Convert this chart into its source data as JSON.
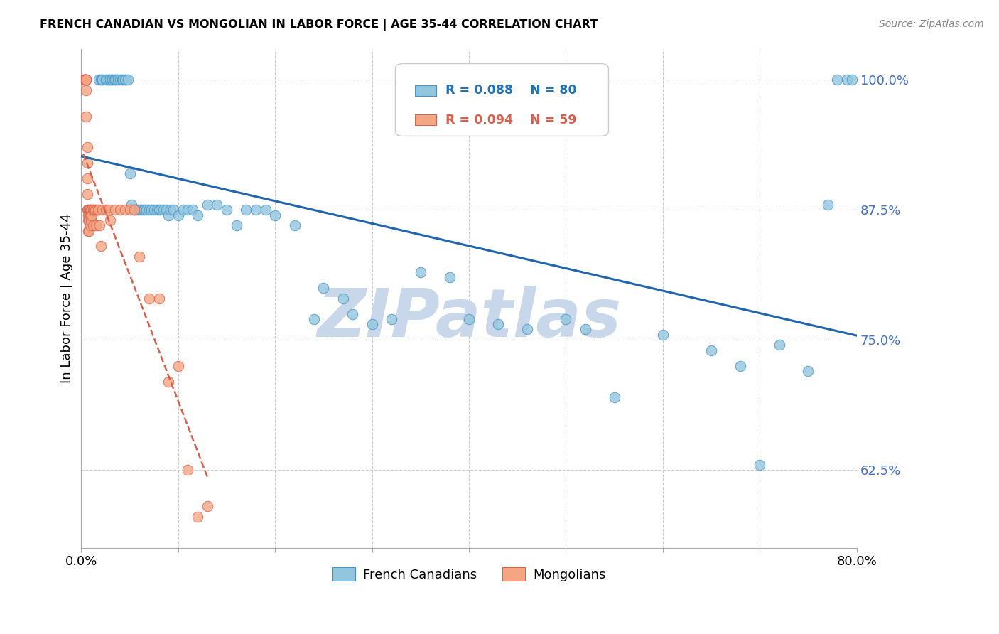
{
  "title": "FRENCH CANADIAN VS MONGOLIAN IN LABOR FORCE | AGE 35-44 CORRELATION CHART",
  "source": "Source: ZipAtlas.com",
  "ylabel": "In Labor Force | Age 35-44",
  "legend_labels": [
    "French Canadians",
    "Mongolians"
  ],
  "r_blue": 0.088,
  "n_blue": 80,
  "r_pink": 0.094,
  "n_pink": 59,
  "xlim": [
    0.0,
    0.8
  ],
  "ylim": [
    0.55,
    1.03
  ],
  "yticks": [
    0.625,
    0.75,
    0.875,
    1.0
  ],
  "ytick_labels": [
    "62.5%",
    "75.0%",
    "87.5%",
    "100.0%"
  ],
  "xticks": [
    0.0,
    0.1,
    0.2,
    0.3,
    0.4,
    0.5,
    0.6,
    0.7,
    0.8
  ],
  "xtick_labels": [
    "0.0%",
    "",
    "",
    "",
    "",
    "",
    "",
    "",
    "80.0%"
  ],
  "blue_color": "#92c5de",
  "blue_edge_color": "#4393c3",
  "pink_color": "#f4a582",
  "pink_edge_color": "#d6604d",
  "trend_blue_color": "#2166ac",
  "trend_pink_color": "#d6604d",
  "watermark": "ZIPatlas",
  "watermark_color": "#c8d8ea",
  "blue_dots_x": [
    0.018,
    0.02,
    0.021,
    0.022,
    0.025,
    0.026,
    0.028,
    0.03,
    0.031,
    0.032,
    0.034,
    0.035,
    0.036,
    0.038,
    0.04,
    0.042,
    0.043,
    0.045,
    0.046,
    0.048,
    0.05,
    0.052,
    0.053,
    0.055,
    0.056,
    0.058,
    0.06,
    0.062,
    0.064,
    0.065,
    0.067,
    0.07,
    0.072,
    0.075,
    0.078,
    0.08,
    0.082,
    0.085,
    0.088,
    0.09,
    0.092,
    0.095,
    0.1,
    0.105,
    0.11,
    0.115,
    0.12,
    0.13,
    0.14,
    0.15,
    0.16,
    0.17,
    0.18,
    0.19,
    0.2,
    0.22,
    0.24,
    0.25,
    0.27,
    0.28,
    0.3,
    0.32,
    0.35,
    0.38,
    0.4,
    0.43,
    0.46,
    0.5,
    0.52,
    0.55,
    0.6,
    0.65,
    0.68,
    0.7,
    0.72,
    0.75,
    0.77,
    0.78,
    0.79,
    0.795
  ],
  "blue_dots_y": [
    1.0,
    1.0,
    1.0,
    1.0,
    1.0,
    1.0,
    1.0,
    1.0,
    1.0,
    1.0,
    1.0,
    1.0,
    1.0,
    1.0,
    1.0,
    1.0,
    1.0,
    1.0,
    1.0,
    1.0,
    0.91,
    0.88,
    0.875,
    0.875,
    0.875,
    0.875,
    0.875,
    0.875,
    0.875,
    0.875,
    0.875,
    0.875,
    0.875,
    0.875,
    0.875,
    0.875,
    0.875,
    0.875,
    0.875,
    0.87,
    0.875,
    0.875,
    0.87,
    0.875,
    0.875,
    0.875,
    0.87,
    0.88,
    0.88,
    0.875,
    0.86,
    0.875,
    0.875,
    0.875,
    0.87,
    0.86,
    0.77,
    0.8,
    0.79,
    0.775,
    0.765,
    0.77,
    0.815,
    0.81,
    0.77,
    0.765,
    0.76,
    0.77,
    0.76,
    0.695,
    0.755,
    0.74,
    0.725,
    0.63,
    0.745,
    0.72,
    0.88,
    1.0,
    1.0,
    1.0
  ],
  "pink_dots_x": [
    0.002,
    0.003,
    0.003,
    0.004,
    0.004,
    0.004,
    0.005,
    0.005,
    0.005,
    0.005,
    0.005,
    0.006,
    0.006,
    0.006,
    0.006,
    0.006,
    0.007,
    0.007,
    0.007,
    0.007,
    0.008,
    0.008,
    0.008,
    0.008,
    0.009,
    0.009,
    0.009,
    0.01,
    0.01,
    0.01,
    0.011,
    0.011,
    0.012,
    0.012,
    0.013,
    0.014,
    0.015,
    0.016,
    0.017,
    0.018,
    0.019,
    0.02,
    0.022,
    0.025,
    0.028,
    0.03,
    0.035,
    0.04,
    0.045,
    0.05,
    0.055,
    0.06,
    0.07,
    0.08,
    0.09,
    0.1,
    0.11,
    0.12,
    0.13
  ],
  "pink_dots_y": [
    1.0,
    1.0,
    1.0,
    1.0,
    1.0,
    1.0,
    1.0,
    1.0,
    1.0,
    0.99,
    0.965,
    0.935,
    0.92,
    0.905,
    0.89,
    0.875,
    0.875,
    0.87,
    0.865,
    0.855,
    0.875,
    0.87,
    0.865,
    0.855,
    0.875,
    0.87,
    0.86,
    0.875,
    0.87,
    0.865,
    0.875,
    0.87,
    0.875,
    0.86,
    0.875,
    0.875,
    0.86,
    0.875,
    0.875,
    0.875,
    0.86,
    0.84,
    0.875,
    0.875,
    0.875,
    0.865,
    0.875,
    0.875,
    0.875,
    0.875,
    0.875,
    0.83,
    0.79,
    0.79,
    0.71,
    0.725,
    0.625,
    0.58,
    0.59
  ]
}
